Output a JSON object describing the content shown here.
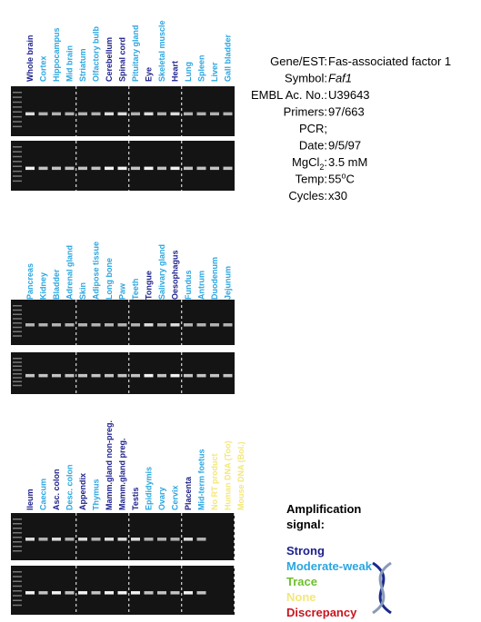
{
  "panels": [
    {
      "lanes": [
        {
          "label": "Whole brain",
          "level": "strong"
        },
        {
          "label": "Cortex",
          "level": "moderate"
        },
        {
          "label": "Hippocampus",
          "level": "moderate"
        },
        {
          "label": "Mid brain",
          "level": "moderate"
        },
        {
          "label": "Striatum",
          "level": "moderate"
        },
        {
          "label": "Olfactory bulb",
          "level": "moderate"
        },
        {
          "label": "Cerebellum",
          "level": "strong"
        },
        {
          "label": "Spinal cord",
          "level": "strong"
        },
        {
          "label": "Pituitary gland",
          "level": "moderate"
        },
        {
          "label": "Eye",
          "level": "strong"
        },
        {
          "label": "Skeletal muscle",
          "level": "moderate"
        },
        {
          "label": "Heart",
          "level": "strong"
        },
        {
          "label": "Lung",
          "level": "moderate"
        },
        {
          "label": "Spleen",
          "level": "moderate"
        },
        {
          "label": "Liver",
          "level": "moderate"
        },
        {
          "label": "Gall bladder",
          "level": "moderate"
        }
      ]
    },
    {
      "lanes": [
        {
          "label": "Pancreas",
          "level": "moderate"
        },
        {
          "label": "Kidney",
          "level": "moderate"
        },
        {
          "label": "Bladder",
          "level": "moderate"
        },
        {
          "label": "Adrenal gland",
          "level": "moderate"
        },
        {
          "label": "Skin",
          "level": "moderate"
        },
        {
          "label": "Adipose tissue",
          "level": "moderate"
        },
        {
          "label": "Long bone",
          "level": "moderate"
        },
        {
          "label": "Paw",
          "level": "moderate"
        },
        {
          "label": "Teeth",
          "level": "moderate"
        },
        {
          "label": "Tongue",
          "level": "strong"
        },
        {
          "label": "Salivary gland",
          "level": "moderate"
        },
        {
          "label": "Oesophagus",
          "level": "strong"
        },
        {
          "label": "Fundus",
          "level": "moderate"
        },
        {
          "label": "Antrum",
          "level": "moderate"
        },
        {
          "label": "Duodenum",
          "level": "moderate"
        },
        {
          "label": "Jejunum",
          "level": "moderate"
        }
      ]
    },
    {
      "lanes": [
        {
          "label": "Ileum",
          "level": "strong"
        },
        {
          "label": "Caecum",
          "level": "moderate"
        },
        {
          "label": "Asc. colon",
          "level": "strong"
        },
        {
          "label": "Desc. colon",
          "level": "moderate"
        },
        {
          "label": "Appendix",
          "level": "strong"
        },
        {
          "label": "Thymus",
          "level": "moderate"
        },
        {
          "label": "Mamm.gland non-preg.",
          "level": "strong"
        },
        {
          "label": "Mamm.gland preg.",
          "level": "strong"
        },
        {
          "label": "Testis",
          "level": "strong"
        },
        {
          "label": "Epididymis",
          "level": "moderate"
        },
        {
          "label": "Ovary",
          "level": "moderate"
        },
        {
          "label": "Cervix",
          "level": "moderate"
        },
        {
          "label": "Placenta",
          "level": "strong"
        },
        {
          "label": "Mid-term foetus",
          "level": "moderate"
        },
        {
          "label": "No RT product",
          "level": "none"
        },
        {
          "label": "Human DNA (Too)",
          "level": "none"
        },
        {
          "label": "Mouse DNA (Bol.)",
          "level": "none"
        }
      ]
    }
  ],
  "info": [
    {
      "label": "Gene/EST:",
      "value": "Fas-associated factor 1"
    },
    {
      "label": "Symbol:",
      "value": "Faf1",
      "italic": true
    },
    {
      "label": "EMBL Ac. No.:",
      "value": "U39643"
    },
    {
      "label": "Primers:",
      "value": "97/663"
    },
    {
      "label": "PCR;"
    },
    {
      "label": "Date:",
      "value": "9/5/97"
    },
    {
      "label": "MgCl",
      "label_sub": "2",
      "label_end": ":",
      "value": "3.5 mM"
    },
    {
      "label": "Temp:",
      "value": "55",
      "value_sup": "o",
      "value_end": "C"
    },
    {
      "label": "Cycles:",
      "value": "x30"
    }
  ],
  "legend": {
    "title": "Amplification signal:",
    "items": [
      {
        "label": "Strong",
        "level": "strong",
        "color": "#1b1f8a"
      },
      {
        "label": "Moderate-weak",
        "level": "moderate",
        "color": "#2aa6e0"
      },
      {
        "label": "Trace",
        "level": "trace",
        "color": "#6cc02a"
      },
      {
        "label": "None",
        "level": "none",
        "color": "#f3e77a"
      },
      {
        "label": "Discrepancy",
        "level": "discrepancy",
        "color": "#c8141e"
      }
    ]
  }
}
